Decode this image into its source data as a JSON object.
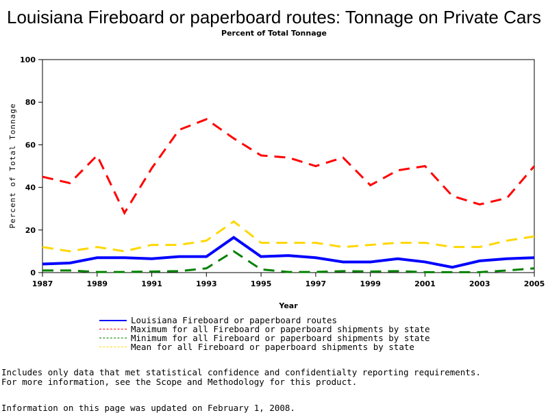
{
  "chart_data": {
    "type": "line",
    "title": "Louisiana Fireboard or paperboard routes: Tonnage on Private Cars",
    "subtitle": "Percent of Total Tonnage",
    "xlabel": "Year",
    "ylabel": "Percent of Total Tonnage",
    "xlim": [
      1987,
      2005
    ],
    "ylim": [
      0,
      100
    ],
    "xticks": [
      "1987",
      "1989",
      "1991",
      "1993",
      "1995",
      "1997",
      "1999",
      "2001",
      "2003",
      "2005"
    ],
    "yticks": [
      "0",
      "20",
      "40",
      "60",
      "80",
      "100"
    ],
    "x": [
      1987,
      1988,
      1989,
      1990,
      1991,
      1992,
      1993,
      1994,
      1995,
      1996,
      1997,
      1998,
      1999,
      2000,
      2001,
      2002,
      2003,
      2004,
      2005
    ],
    "series": [
      {
        "name": "Louisiana Fireboard or paperboard routes",
        "color": "#0000ff",
        "style": "solid",
        "values": [
          4,
          4.5,
          7,
          7,
          6.5,
          7.5,
          7.5,
          16.5,
          7.5,
          8,
          7,
          5,
          5,
          6.5,
          5,
          2.5,
          5.5,
          6.5,
          7
        ]
      },
      {
        "name": "Maximum for all Fireboard or paperboard shipments by state",
        "color": "#ff0000",
        "style": "dashed",
        "values": [
          45,
          42,
          55,
          28,
          49,
          67,
          72,
          63,
          55,
          54,
          50,
          54,
          41,
          48,
          50,
          36,
          32,
          35,
          50
        ]
      },
      {
        "name": "Minimum for all Fireboard or paperboard shipments by state",
        "color": "#008000",
        "style": "dashed",
        "values": [
          1,
          1,
          0.3,
          0.3,
          0.5,
          0.7,
          2,
          10,
          1.5,
          0.3,
          0.3,
          0.7,
          0.5,
          0.7,
          0.2,
          0.2,
          0.2,
          1,
          2
        ]
      },
      {
        "name": "Mean for all Fireboard or paperboard shipments by state",
        "color": "#ffd700",
        "style": "dashed",
        "values": [
          12,
          10,
          12,
          10,
          13,
          13,
          15,
          24,
          14,
          14,
          14,
          12,
          13,
          14,
          14,
          12,
          12,
          15,
          17
        ]
      }
    ]
  },
  "notes": [
    "Includes only data that met statistical confidence and confidentialty reporting requirements.",
    "For more information, see the Scope and Methodology for this product."
  ],
  "updated": "Information on this page was updated on February 1, 2008."
}
